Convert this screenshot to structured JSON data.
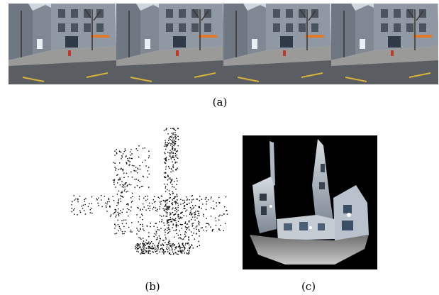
{
  "figure": {
    "captions": {
      "a": "(a)",
      "b": "(b)",
      "c": "(c)"
    },
    "panel_a": {
      "frames": [
        {
          "id": "frame-1"
        },
        {
          "id": "frame-2"
        },
        {
          "id": "frame-3"
        },
        {
          "id": "frame-4"
        }
      ]
    }
  },
  "colors": {
    "sky": "#cfd6de",
    "building": "#8f98a3",
    "road": "#5a5d62",
    "sidewalk": "#9a9a98",
    "lane_mark": "#d9b23a",
    "sign_orange": "#e07a2a",
    "cloud_points": "#000000",
    "depth_bg": "#000000"
  }
}
